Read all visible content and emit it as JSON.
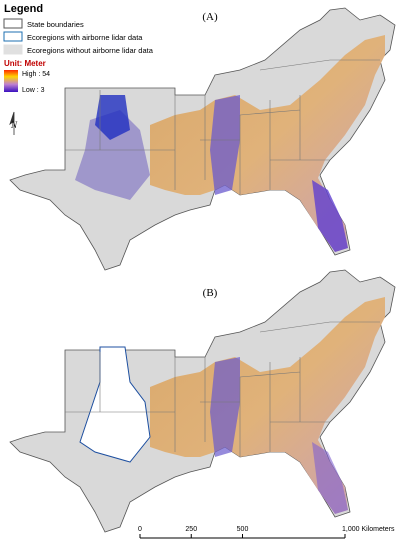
{
  "legend": {
    "title": "Legend",
    "items": [
      "State boundaries",
      "Ecoregions with airborne lidar data",
      "Ecoregions without airborne lidar data"
    ],
    "unit": "Unit: Meter",
    "high": "High : 54",
    "low": "Low : 3"
  },
  "panels": [
    {
      "label": "(A)"
    },
    {
      "label": "(B)"
    }
  ],
  "north": "N",
  "scale_bar": {
    "ticks": [
      {
        "value": 0,
        "label": "0"
      },
      {
        "value": 250,
        "label": "250"
      },
      {
        "value": 500,
        "label": "500"
      },
      {
        "value": 1000,
        "label": "1,000 Kilometers"
      }
    ]
  }
}
